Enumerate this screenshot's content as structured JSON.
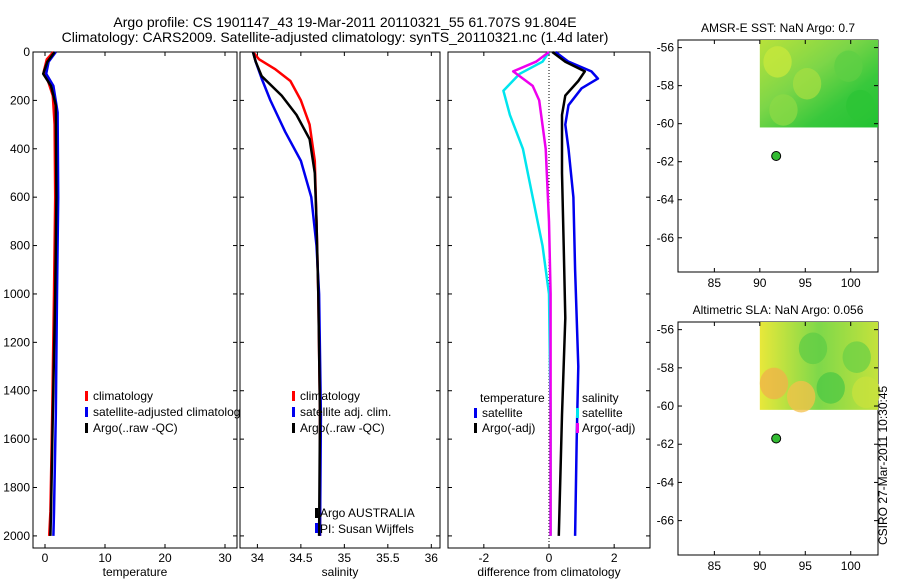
{
  "header": {
    "line1": "Argo profile: CS 1901147_43 19-Mar-2011 20110321_55 61.707S 91.804E",
    "line2": "Climatology: CARS2009. Satellite-adjusted climatology: synTS_20110321.nc (1.4d later)"
  },
  "watermark": "CSIRO 27-Mar-2011 10:30:45",
  "colors": {
    "red": "#ff0000",
    "blue": "#0000ee",
    "black": "#000000",
    "cyan": "#00e5ee",
    "magenta": "#ee00ee"
  },
  "chart_data": [
    {
      "id": "temperature",
      "type": "line",
      "xlabel": "temperature",
      "xlim": [
        -2,
        32
      ],
      "ylim": [
        0,
        2050
      ],
      "xticks": [
        0,
        10,
        20,
        30
      ],
      "yticks": [
        0,
        200,
        400,
        600,
        800,
        1000,
        1200,
        1400,
        1600,
        1800,
        2000
      ],
      "legend": [
        "climatology",
        "satellite-adjusted climatology",
        "Argo(..raw -QC)"
      ],
      "series": [
        {
          "name": "climatology",
          "color": "red",
          "points": [
            [
              1.4,
              0
            ],
            [
              0.3,
              30
            ],
            [
              -0.2,
              80
            ],
            [
              0.5,
              120
            ],
            [
              1.3,
              180
            ],
            [
              1.6,
              300
            ],
            [
              1.7,
              600
            ],
            [
              1.5,
              1000
            ],
            [
              1.2,
              1500
            ],
            [
              0.9,
              1900
            ],
            [
              0.7,
              2000
            ]
          ]
        },
        {
          "name": "satellite-adjusted climatology",
          "color": "blue",
          "points": [
            [
              1.8,
              0
            ],
            [
              0.6,
              40
            ],
            [
              0.2,
              90
            ],
            [
              1.4,
              140
            ],
            [
              2.1,
              250
            ],
            [
              2.2,
              600
            ],
            [
              2.0,
              1000
            ],
            [
              1.8,
              1500
            ],
            [
              1.5,
              1900
            ],
            [
              1.4,
              2000
            ]
          ]
        },
        {
          "name": "Argo(..raw -QC)",
          "color": "black",
          "points": [
            [
              1.6,
              0
            ],
            [
              0.4,
              40
            ],
            [
              -0.3,
              90
            ],
            [
              1.0,
              140
            ],
            [
              1.8,
              220
            ],
            [
              1.9,
              600
            ],
            [
              1.7,
              1000
            ],
            [
              1.3,
              1500
            ],
            [
              1.0,
              1900
            ],
            [
              0.9,
              2000
            ]
          ]
        }
      ]
    },
    {
      "id": "salinity",
      "type": "line",
      "xlabel": "salinity",
      "xlim": [
        33.8,
        36.1
      ],
      "ylim": [
        0,
        2050
      ],
      "xticks": [
        34,
        34.5,
        35,
        35.5,
        36
      ],
      "yticks": [
        0,
        200,
        400,
        600,
        800,
        1000,
        1200,
        1400,
        1600,
        1800,
        2000
      ],
      "legend": [
        "climatology",
        "satellite adj. clim.",
        "Argo(..raw -QC)"
      ],
      "annotation": [
        "Argo AUSTRALIA",
        "PI: Susan Wijffels"
      ],
      "series": [
        {
          "name": "climatology",
          "color": "red",
          "points": [
            [
              33.95,
              0
            ],
            [
              34.02,
              30
            ],
            [
              34.2,
              70
            ],
            [
              34.38,
              120
            ],
            [
              34.5,
              200
            ],
            [
              34.6,
              300
            ],
            [
              34.66,
              450
            ],
            [
              34.68,
              700
            ],
            [
              34.7,
              1000
            ],
            [
              34.72,
              1500
            ],
            [
              34.72,
              2000
            ]
          ]
        },
        {
          "name": "satellite adj. clim.",
          "color": "blue",
          "points": [
            [
              33.95,
              0
            ],
            [
              33.98,
              40
            ],
            [
              34.05,
              110
            ],
            [
              34.15,
              200
            ],
            [
              34.32,
              330
            ],
            [
              34.5,
              450
            ],
            [
              34.62,
              600
            ],
            [
              34.68,
              800
            ],
            [
              34.71,
              1000
            ],
            [
              34.73,
              1500
            ],
            [
              34.72,
              2000
            ]
          ]
        },
        {
          "name": "Argo(..raw -QC)",
          "color": "black",
          "points": [
            [
              33.95,
              0
            ],
            [
              33.98,
              40
            ],
            [
              34.05,
              100
            ],
            [
              34.28,
              180
            ],
            [
              34.45,
              260
            ],
            [
              34.6,
              360
            ],
            [
              34.66,
              500
            ],
            [
              34.68,
              700
            ],
            [
              34.7,
              1000
            ],
            [
              34.72,
              1500
            ],
            [
              34.71,
              2000
            ]
          ]
        }
      ]
    },
    {
      "id": "difference",
      "type": "line",
      "xlabel": "difference from climatology",
      "xlim": [
        -3.1,
        3.1
      ],
      "ylim": [
        0,
        2050
      ],
      "xticks": [
        -2,
        0,
        2
      ],
      "yticks": [
        0,
        200,
        400,
        600,
        800,
        1000,
        1200,
        1400,
        1600,
        1800,
        2000
      ],
      "legend_temperature_title": "temperature",
      "legend_salinity_title": "salinity",
      "legend_temperature": [
        "satellite",
        "Argo(-adj)"
      ],
      "legend_salinity": [
        "satellite",
        "Argo(-adj)"
      ],
      "series": [
        {
          "name": "temperature satellite",
          "color": "blue",
          "points": [
            [
              0.2,
              0
            ],
            [
              0.6,
              40
            ],
            [
              1.3,
              80
            ],
            [
              1.5,
              110
            ],
            [
              1.0,
              150
            ],
            [
              0.6,
              220
            ],
            [
              0.5,
              300
            ],
            [
              0.6,
              400
            ],
            [
              0.75,
              600
            ],
            [
              0.8,
              900
            ],
            [
              0.9,
              1300
            ],
            [
              0.85,
              1600
            ],
            [
              0.8,
              2000
            ]
          ]
        },
        {
          "name": "temperature Argo(-adj)",
          "color": "black",
          "points": [
            [
              0.1,
              0
            ],
            [
              0.5,
              40
            ],
            [
              1.1,
              80
            ],
            [
              0.9,
              120
            ],
            [
              0.5,
              180
            ],
            [
              0.4,
              260
            ],
            [
              0.4,
              500
            ],
            [
              0.45,
              800
            ],
            [
              0.5,
              1100
            ],
            [
              0.4,
              1500
            ],
            [
              0.3,
              2000
            ]
          ]
        },
        {
          "name": "salinity satellite",
          "color": "cyan",
          "points": [
            [
              0,
              0
            ],
            [
              -0.2,
              40
            ],
            [
              -0.9,
              90
            ],
            [
              -1.4,
              160
            ],
            [
              -1.2,
              260
            ],
            [
              -0.8,
              400
            ],
            [
              -0.5,
              600
            ],
            [
              -0.2,
              800
            ],
            [
              0,
              1000
            ],
            [
              0.05,
              1500
            ],
            [
              0.05,
              2000
            ]
          ]
        },
        {
          "name": "salinity Argo(-adj)",
          "color": "magenta",
          "points": [
            [
              0,
              0
            ],
            [
              -0.4,
              40
            ],
            [
              -1.1,
              80
            ],
            [
              -0.5,
              140
            ],
            [
              -0.3,
              200
            ],
            [
              -0.1,
              400
            ],
            [
              0,
              700
            ],
            [
              0.05,
              1000
            ],
            [
              0.05,
              1500
            ],
            [
              0.05,
              2000
            ]
          ]
        }
      ]
    },
    {
      "id": "amsr",
      "type": "heatmap",
      "title": "AMSR-E SST: NaN Argo: 0.7",
      "xlim": [
        81,
        103
      ],
      "ylim": [
        -67.8,
        -55.6
      ],
      "xticks": [
        85,
        90,
        95,
        100
      ],
      "yticks": [
        -56,
        -58,
        -60,
        -62,
        -64,
        -66
      ],
      "tile": {
        "lon": [
          90,
          103
        ],
        "lat": [
          -60.2,
          -55.6
        ]
      },
      "marker": {
        "lon": 91.8,
        "lat": -61.7
      }
    },
    {
      "id": "sla",
      "type": "heatmap",
      "title": "Altimetric SLA: NaN Argo: 0.056",
      "xlim": [
        81,
        103
      ],
      "ylim": [
        -67.8,
        -55.6
      ],
      "xticks": [
        85,
        90,
        95,
        100
      ],
      "yticks": [
        -56,
        -58,
        -60,
        -62,
        -64,
        -66
      ],
      "tile": {
        "lon": [
          90,
          103
        ],
        "lat": [
          -60.2,
          -55.6
        ]
      },
      "marker": {
        "lon": 91.8,
        "lat": -61.7
      }
    }
  ]
}
